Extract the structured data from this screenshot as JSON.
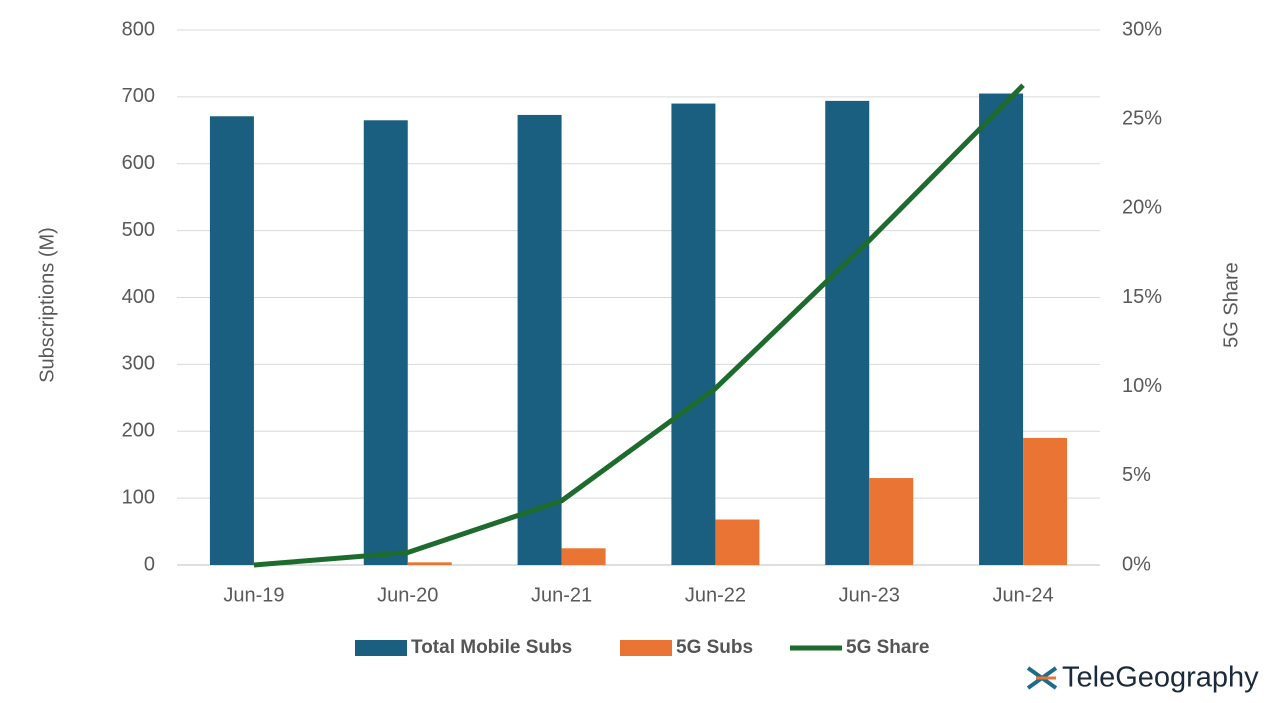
{
  "chart_data": {
    "type": "bar",
    "categories": [
      "Jun-19",
      "Jun-20",
      "Jun-21",
      "Jun-22",
      "Jun-23",
      "Jun-24"
    ],
    "series": [
      {
        "name": "Total Mobile Subs",
        "color": "#1a5e80",
        "type": "bar",
        "values": [
          671,
          665,
          673,
          690,
          694,
          705
        ]
      },
      {
        "name": "5G Subs",
        "color": "#e97434",
        "type": "bar",
        "values": [
          0,
          4,
          25,
          68,
          130,
          190
        ]
      },
      {
        "name": "5G Share",
        "color": "#1e6b2e",
        "type": "line",
        "axis": "y2",
        "values": [
          0,
          0.7,
          3.6,
          9.9,
          18.2,
          26.9
        ]
      }
    ],
    "y_label": "Subscriptions (M)",
    "y2_label": "5G Share",
    "ylim": [
      0,
      800
    ],
    "yticks": [
      0,
      100,
      200,
      300,
      400,
      500,
      600,
      700,
      800
    ],
    "y2lim": [
      0,
      30
    ],
    "y2ticks": [
      {
        "value": 0,
        "label": "0%"
      },
      {
        "value": 5,
        "label": "5%"
      },
      {
        "value": 10,
        "label": "10%"
      },
      {
        "value": 15,
        "label": "15%"
      },
      {
        "value": 20,
        "label": "20%"
      },
      {
        "value": 25,
        "label": "25%"
      },
      {
        "value": 30,
        "label": "30%"
      }
    ],
    "grid": true,
    "legend": "bottom"
  },
  "logo": "TeleGeography"
}
